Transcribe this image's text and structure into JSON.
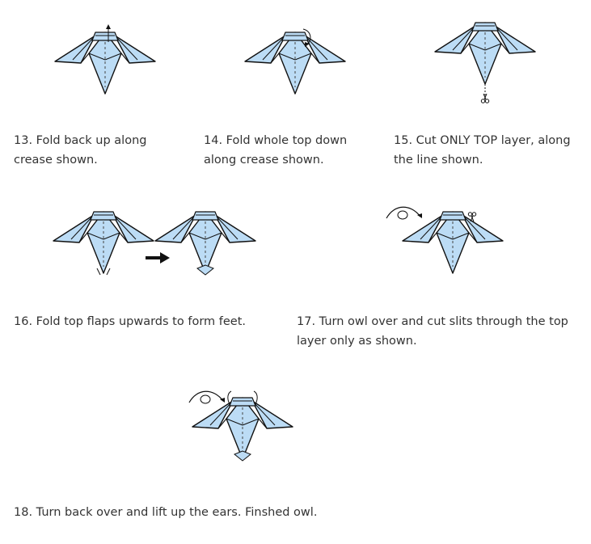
{
  "steps": [
    {
      "number": "13.",
      "text": "Fold back up along crease shown."
    },
    {
      "number": "14.",
      "text": "Fold whole top down along crease shown."
    },
    {
      "number": "15.",
      "text": "Cut ONLY TOP layer, along the line shown."
    },
    {
      "number": "16.",
      "text": "Fold top flaps upwards to form feet."
    },
    {
      "number": "17.",
      "text": "Turn owl over and cut slits through the top layer only as shown."
    },
    {
      "number": "18.",
      "text": "Turn back over and lift up the ears. Finshed owl."
    }
  ],
  "colors": {
    "paper_fill": "#bcdcf5",
    "outline": "#111111",
    "crease": "#444444"
  },
  "icons": [
    "owl-diagram",
    "fold-arrow-icon",
    "scissors-icon",
    "turn-over-icon",
    "right-arrow-icon"
  ]
}
